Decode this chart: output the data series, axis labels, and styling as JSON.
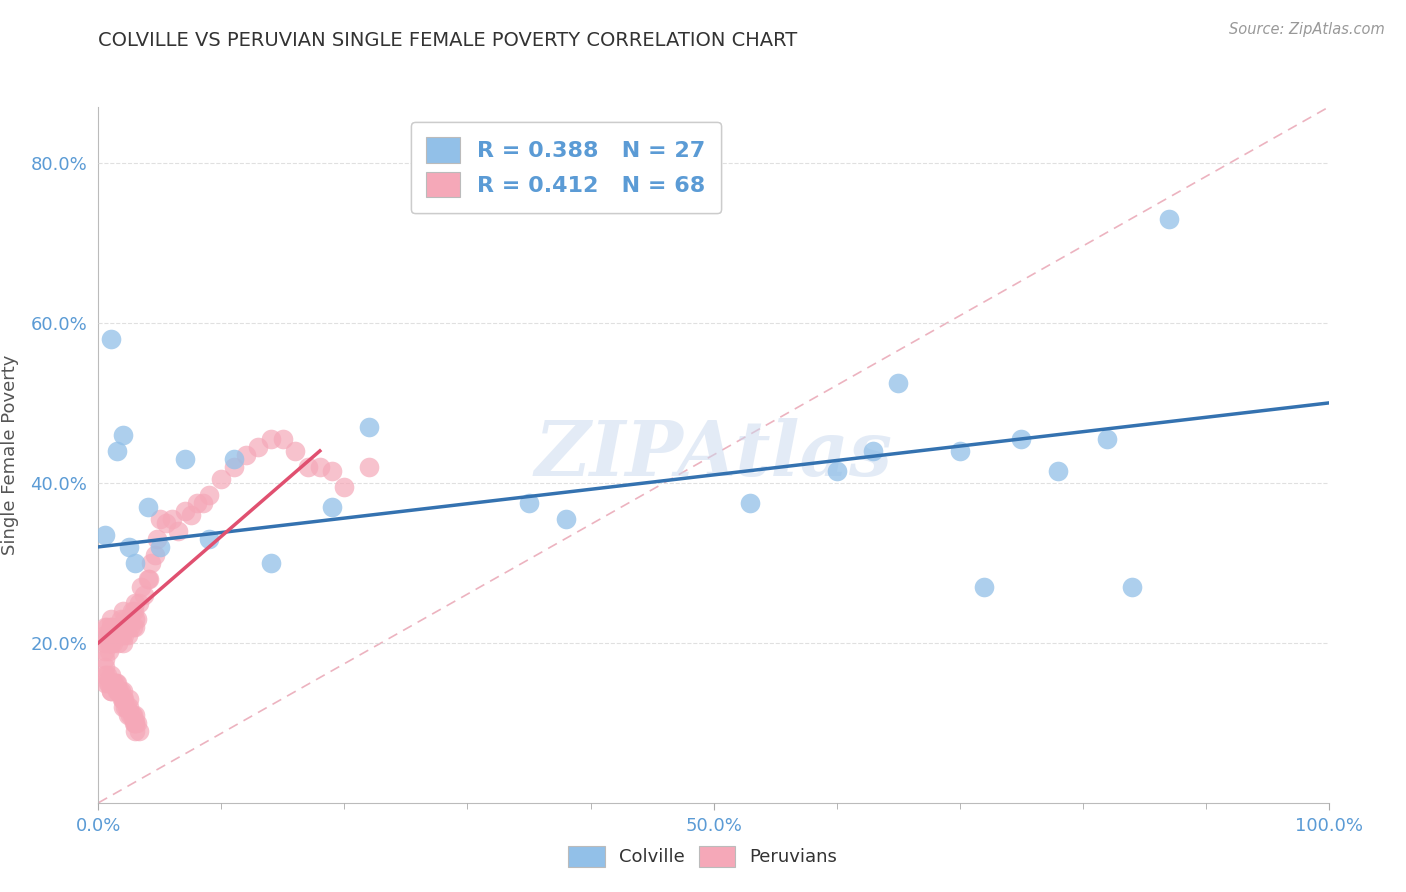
{
  "title": "COLVILLE VS PERUVIAN SINGLE FEMALE POVERTY CORRELATION CHART",
  "source": "Source: ZipAtlas.com",
  "ylabel": "Single Female Poverty",
  "xlim": [
    0,
    1.0
  ],
  "ylim": [
    0,
    0.87
  ],
  "y_ticks": [
    0.2,
    0.4,
    0.6,
    0.8
  ],
  "y_tick_labels": [
    "20.0%",
    "40.0%",
    "60.0%",
    "80.0%"
  ],
  "x_ticks_major": [
    0.0,
    0.5,
    1.0
  ],
  "x_tick_labels": [
    "0.0%",
    "50.0%",
    "100.0%"
  ],
  "x_ticks_minor": [
    0.1,
    0.2,
    0.3,
    0.4,
    0.6,
    0.7,
    0.8,
    0.9
  ],
  "colville_R": 0.388,
  "colville_N": 27,
  "peruvians_R": 0.412,
  "peruvians_N": 68,
  "colville_color": "#92C0E8",
  "peruvians_color": "#F5A8B8",
  "colville_line_color": "#3472B0",
  "peruvians_line_color": "#E05070",
  "diagonal_color": "#E8A0B0",
  "watermark": "ZIPAtlas",
  "colville_x": [
    0.005,
    0.01,
    0.015,
    0.02,
    0.025,
    0.03,
    0.04,
    0.05,
    0.07,
    0.09,
    0.11,
    0.14,
    0.19,
    0.22,
    0.35,
    0.38,
    0.53,
    0.6,
    0.63,
    0.65,
    0.7,
    0.72,
    0.75,
    0.78,
    0.82,
    0.84,
    0.87
  ],
  "colville_y": [
    0.335,
    0.58,
    0.44,
    0.46,
    0.32,
    0.3,
    0.37,
    0.32,
    0.43,
    0.33,
    0.43,
    0.3,
    0.37,
    0.47,
    0.375,
    0.355,
    0.375,
    0.415,
    0.44,
    0.525,
    0.44,
    0.27,
    0.455,
    0.415,
    0.455,
    0.27,
    0.73
  ],
  "peruvians_x": [
    0.005,
    0.005,
    0.005,
    0.005,
    0.007,
    0.008,
    0.009,
    0.009,
    0.01,
    0.01,
    0.01,
    0.01,
    0.01,
    0.012,
    0.013,
    0.014,
    0.015,
    0.016,
    0.017,
    0.017,
    0.018,
    0.019,
    0.02,
    0.02,
    0.02,
    0.02,
    0.021,
    0.022,
    0.023,
    0.024,
    0.025,
    0.026,
    0.027,
    0.028,
    0.029,
    0.03,
    0.03,
    0.03,
    0.031,
    0.033,
    0.035,
    0.037,
    0.04,
    0.041,
    0.043,
    0.046,
    0.048,
    0.05,
    0.055,
    0.06,
    0.065,
    0.07,
    0.075,
    0.08,
    0.085,
    0.09,
    0.1,
    0.11,
    0.12,
    0.13,
    0.14,
    0.15,
    0.16,
    0.17,
    0.18,
    0.19,
    0.2,
    0.22
  ],
  "peruvians_y": [
    0.22,
    0.21,
    0.2,
    0.19,
    0.22,
    0.21,
    0.2,
    0.19,
    0.22,
    0.2,
    0.22,
    0.23,
    0.21,
    0.2,
    0.21,
    0.22,
    0.22,
    0.2,
    0.21,
    0.22,
    0.23,
    0.21,
    0.22,
    0.2,
    0.22,
    0.24,
    0.21,
    0.23,
    0.22,
    0.21,
    0.23,
    0.22,
    0.24,
    0.22,
    0.24,
    0.23,
    0.22,
    0.25,
    0.23,
    0.25,
    0.27,
    0.26,
    0.28,
    0.28,
    0.3,
    0.31,
    0.33,
    0.355,
    0.35,
    0.355,
    0.34,
    0.365,
    0.36,
    0.375,
    0.375,
    0.385,
    0.405,
    0.42,
    0.435,
    0.445,
    0.455,
    0.455,
    0.44,
    0.42,
    0.42,
    0.415,
    0.395,
    0.42
  ],
  "peruvians_low_x": [
    0.005,
    0.005,
    0.005,
    0.005,
    0.007,
    0.008,
    0.009,
    0.01,
    0.01,
    0.01,
    0.01,
    0.012,
    0.013,
    0.014,
    0.015,
    0.015,
    0.016,
    0.017,
    0.018,
    0.019,
    0.02,
    0.02,
    0.02,
    0.02,
    0.021,
    0.022,
    0.023,
    0.024,
    0.025,
    0.025,
    0.026,
    0.027,
    0.028,
    0.029,
    0.03,
    0.03,
    0.03,
    0.03,
    0.031,
    0.033
  ],
  "peruvians_low_y": [
    0.18,
    0.17,
    0.16,
    0.15,
    0.16,
    0.15,
    0.15,
    0.16,
    0.15,
    0.14,
    0.14,
    0.15,
    0.15,
    0.15,
    0.15,
    0.14,
    0.14,
    0.14,
    0.14,
    0.13,
    0.14,
    0.13,
    0.13,
    0.12,
    0.13,
    0.12,
    0.12,
    0.11,
    0.13,
    0.12,
    0.11,
    0.11,
    0.11,
    0.1,
    0.11,
    0.1,
    0.1,
    0.09,
    0.1,
    0.09
  ],
  "background_color": "#FFFFFF",
  "grid_color": "#DDDDDD",
  "title_color": "#333333",
  "axis_tick_color": "#5B9BD5",
  "legend_border_color": "#CCCCCC",
  "legend_r_color": "#5B9BD5"
}
